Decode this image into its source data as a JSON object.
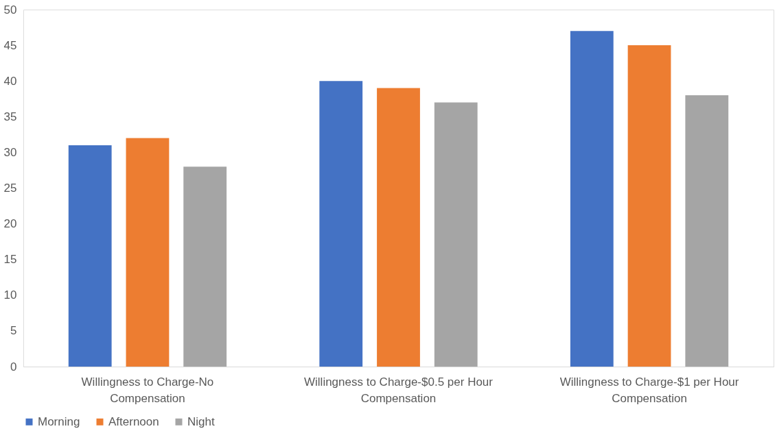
{
  "chart_data": {
    "type": "bar",
    "categories": [
      "Willingness to Charge-No Compensation",
      "Willingness to Charge-$0.5 per Hour Compensation",
      "Willingness to Charge-$1 per Hour Compensation"
    ],
    "series": [
      {
        "name": "Morning",
        "color": "#4472c4",
        "values": [
          31,
          40,
          47
        ]
      },
      {
        "name": "Afternoon",
        "color": "#ed7d31",
        "values": [
          32,
          39,
          45
        ]
      },
      {
        "name": "Night",
        "color": "#a5a5a5",
        "values": [
          28,
          37,
          38
        ]
      }
    ],
    "ylim": [
      0,
      50
    ],
    "yticks": [
      0,
      5,
      10,
      15,
      20,
      25,
      30,
      35,
      40,
      45,
      50
    ],
    "grid": false,
    "legend": "bottom"
  }
}
